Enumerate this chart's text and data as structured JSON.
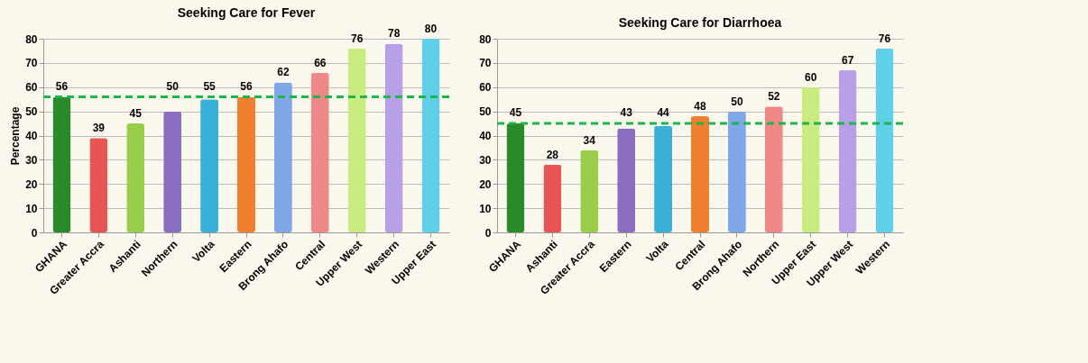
{
  "chart_data": [
    {
      "type": "bar",
      "title": "Seeking Care for Fever",
      "ylabel": "Percentage",
      "categories": [
        "GHANA",
        "Greater Accra",
        "Ashanti",
        "Northern",
        "Volta",
        "Eastern",
        "Brong Ahafo",
        "Central",
        "Upper West",
        "Western",
        "Upper East"
      ],
      "values": [
        56,
        39,
        45,
        50,
        55,
        56,
        62,
        66,
        76,
        78,
        80
      ],
      "colors": [
        "#2a8a2a",
        "#e85555",
        "#9acd4a",
        "#8a6cc0",
        "#3ab0d8",
        "#f08030",
        "#80a8e8",
        "#f08888",
        "#c8ec80",
        "#b8a0e8",
        "#60d0e8"
      ],
      "ylim": [
        0,
        80
      ],
      "yticks": [
        0,
        10,
        20,
        30,
        40,
        50,
        60,
        70,
        80
      ],
      "grid": "y",
      "data_labels": true,
      "ref_lines": [
        {
          "axis": "y",
          "value": 56,
          "color": "#1db44a",
          "line_style": "dashed"
        }
      ]
    },
    {
      "type": "bar",
      "title": "Seeking Care for Diarrhoea",
      "categories": [
        "GHANA",
        "Ashanti",
        "Greater Accra",
        "Eastern",
        "Volta",
        "Central",
        "Brong Ahafo",
        "Northern",
        "Upper East",
        "Upper West",
        "Western"
      ],
      "values": [
        45,
        28,
        34,
        43,
        44,
        48,
        50,
        52,
        60,
        67,
        76
      ],
      "colors": [
        "#2a8a2a",
        "#e85555",
        "#9acd4a",
        "#8a6cc0",
        "#3ab0d8",
        "#f08030",
        "#80a8e8",
        "#f08888",
        "#c8ec80",
        "#b8a0e8",
        "#60d0e8"
      ],
      "ylim": [
        0,
        80
      ],
      "yticks": [
        0,
        10,
        20,
        30,
        40,
        50,
        60,
        70,
        80
      ],
      "grid": "y",
      "data_labels": true,
      "ref_lines": [
        {
          "axis": "y",
          "value": 45,
          "color": "#1db44a",
          "line_style": "dashed"
        }
      ]
    }
  ]
}
